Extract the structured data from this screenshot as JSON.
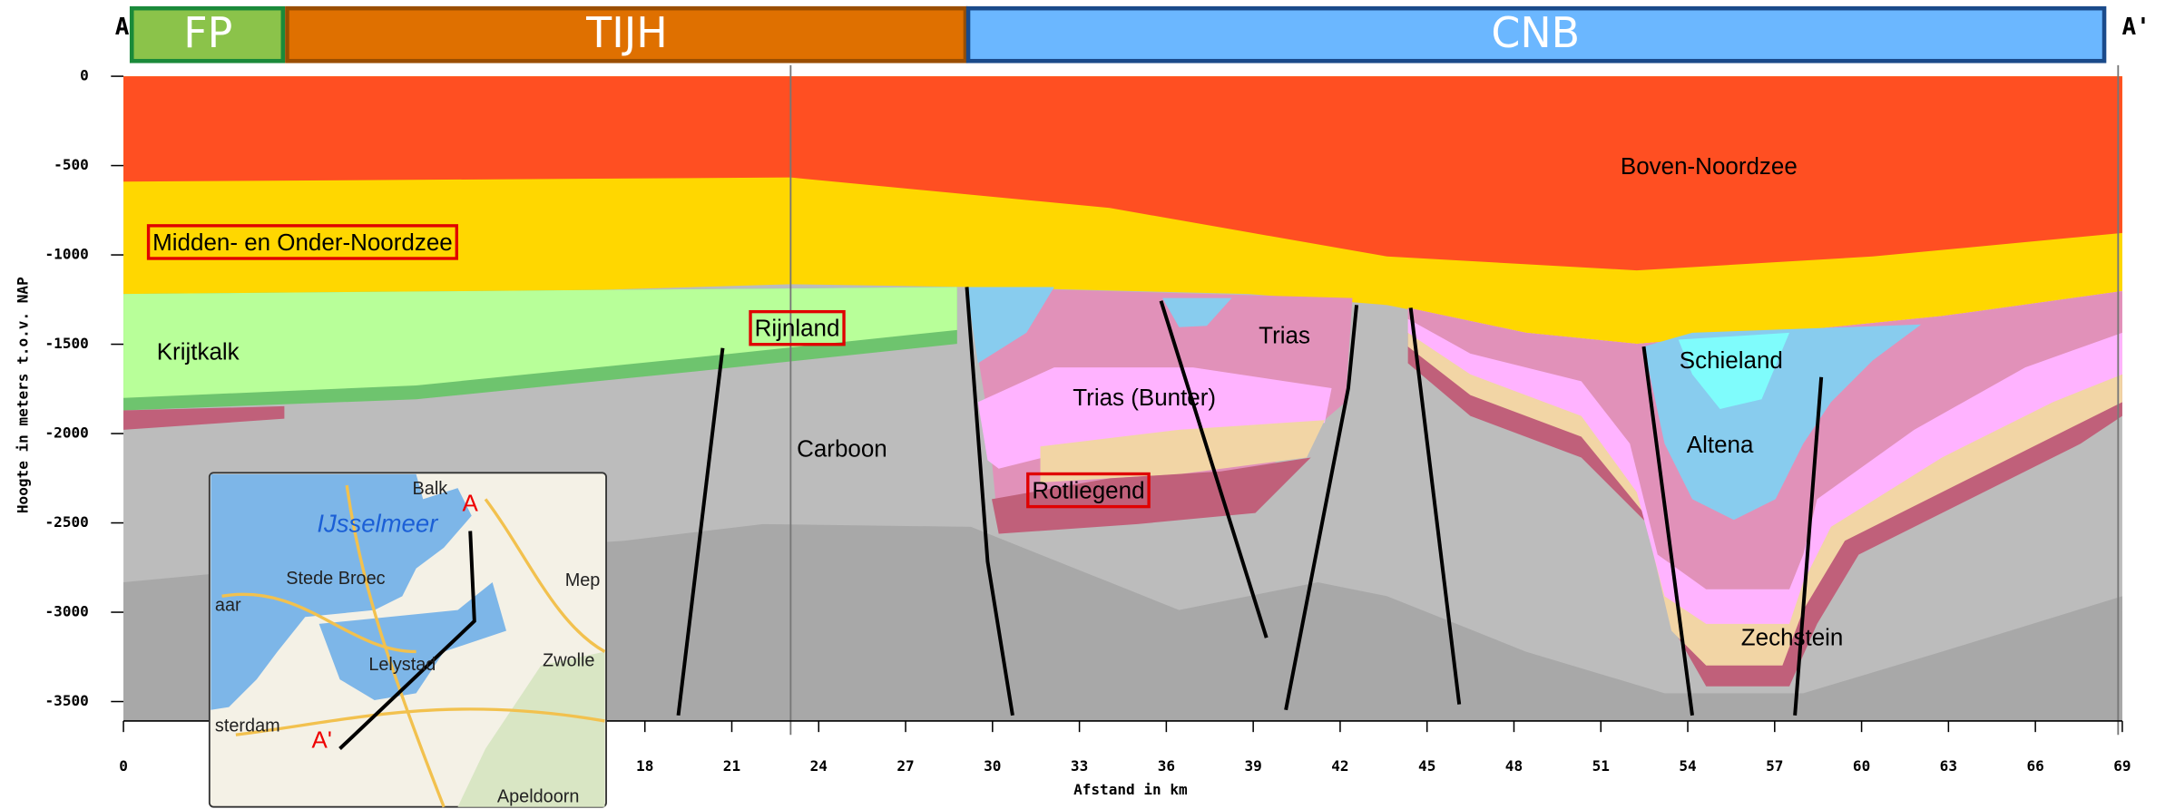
{
  "header": {
    "left_end": "A",
    "right_end": "A'",
    "zones": [
      "FP",
      "TIJH",
      "CNB"
    ]
  },
  "units": {
    "boven": "Boven-Noordzee",
    "midden": "Midden- en Onder-Noordzee",
    "krijtkalk": "Krijtkalk",
    "rijnland": "Rijnland",
    "trias": "Trias",
    "bunter": "Trias (Bunter)",
    "carboon": "Carboon",
    "rotliegend": "Rotliegend",
    "schieland": "Schieland",
    "altena": "Altena",
    "zechstein": "Zechstein"
  },
  "axes": {
    "y_title": "Hoogte in meters t.o.v. NAP",
    "x_title": "Afstand in km",
    "yticks": [
      0,
      -500,
      -1000,
      -1500,
      -2000,
      -2500,
      -3000,
      -3500
    ],
    "xticks": [
      0,
      18,
      21,
      24,
      27,
      30,
      33,
      36,
      39,
      42,
      45,
      48,
      51,
      54,
      57,
      60,
      63,
      66,
      69
    ]
  },
  "map": {
    "labels": [
      "Balk",
      "IJsselmeer",
      "Stede Broec",
      "Mep",
      "aar",
      "Lelystad",
      "Zwolle",
      "sterdam",
      "Apeldoorn"
    ],
    "point_a": "A",
    "point_a_prime": "A'"
  }
}
